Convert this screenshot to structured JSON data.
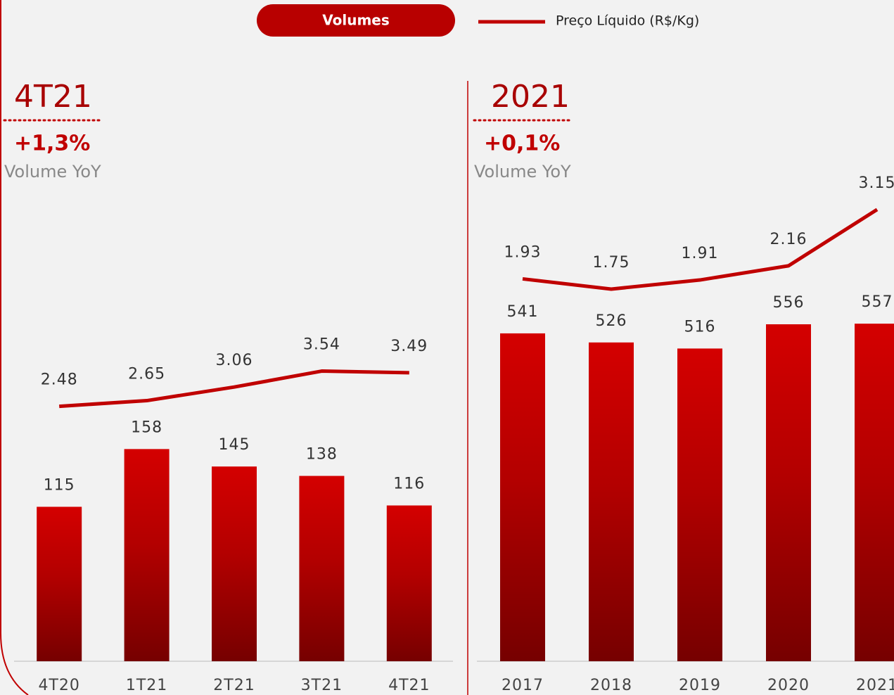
{
  "chart_data": [
    {
      "type": "bar",
      "title": "4T21",
      "annotations": [
        "+1,3%",
        "Volume YoY"
      ],
      "categories": [
        "4T20",
        "1T21",
        "2T21",
        "3T21",
        "4T21"
      ],
      "series": [
        {
          "name": "Volumes",
          "color": "#c00000",
          "values": [
            115,
            158,
            145,
            138,
            116
          ]
        },
        {
          "name": "Preço Líquido (R$/Kg)",
          "color": "#c00000",
          "axis": "y2",
          "values": [
            2.48,
            2.65,
            3.06,
            3.54,
            3.49
          ]
        }
      ],
      "ylim": [
        0,
        440
      ],
      "y2lim": [
        -5.2,
        12.6
      ]
    },
    {
      "type": "bar",
      "title": "2021",
      "annotations": [
        "+0,1%",
        "Volume YoY"
      ],
      "categories": [
        "2017",
        "2018",
        "2019",
        "2020",
        "2021"
      ],
      "series": [
        {
          "color": "#c00000",
          "values": [
            541,
            526,
            516,
            556,
            557
          ]
        },
        {
          "color": "#c00000",
          "axis": "y2",
          "values": [
            1.93,
            1.75,
            1.91,
            2.16,
            3.15
          ]
        }
      ],
      "ylim": [
        0,
        975
      ],
      "y2lim": [
        -4.8,
        5.6
      ]
    }
  ]
}
